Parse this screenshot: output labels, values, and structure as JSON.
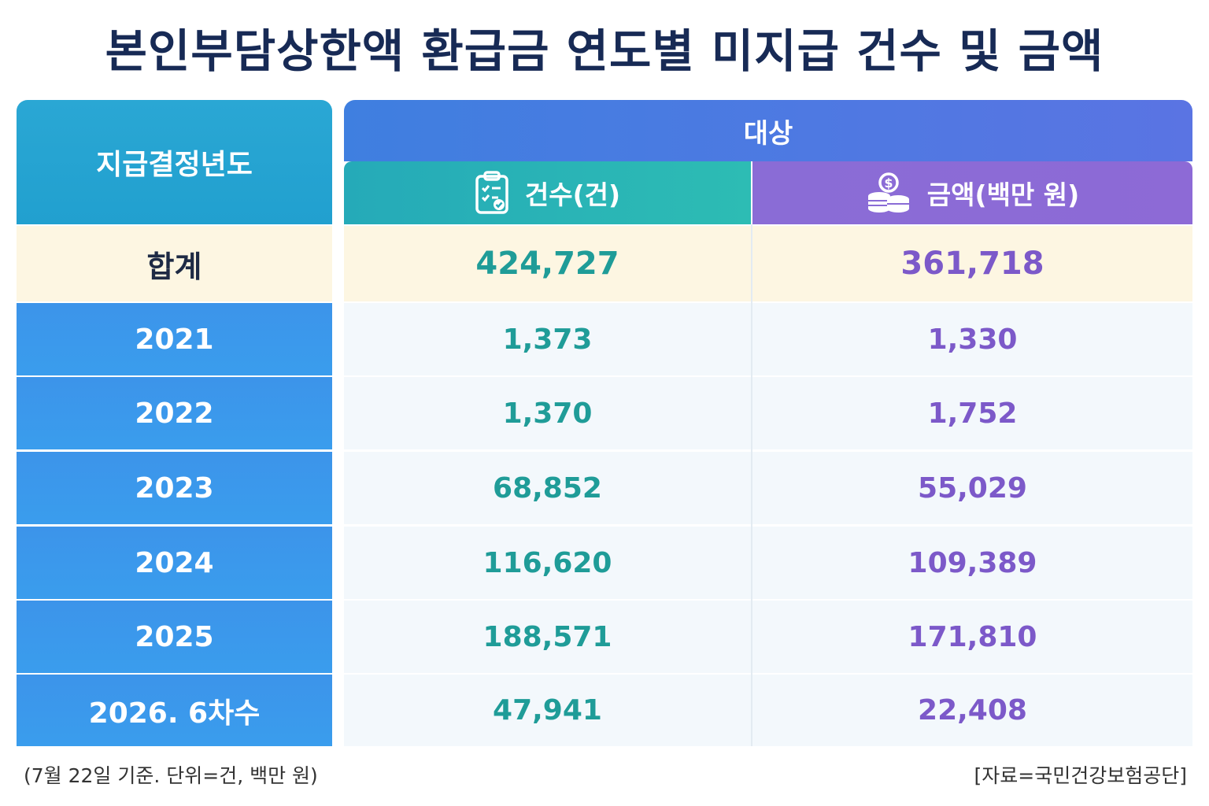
{
  "title": "본인부담상한액 환급금 연도별 미지급 건수 및 금액",
  "table": {
    "row_header": "지급결정년도",
    "group_header": "대상",
    "columns": {
      "count": {
        "label": "건수(건)",
        "icon": "clipboard-check-icon",
        "color": "#1f9c98"
      },
      "amount": {
        "label": "금액(백만 원)",
        "icon": "coin-stack-icon",
        "color": "#7c59c9"
      }
    },
    "rows": [
      {
        "label": "합계",
        "count": "424,727",
        "amount": "361,718"
      },
      {
        "label": "2021",
        "count": "1,373",
        "amount": "1,330"
      },
      {
        "label": "2022",
        "count": "1,370",
        "amount": "1,752"
      },
      {
        "label": "2023",
        "count": "68,852",
        "amount": "55,029"
      },
      {
        "label": "2024",
        "count": "116,620",
        "amount": "109,389"
      },
      {
        "label": "2025",
        "count": "188,571",
        "amount": "171,810"
      },
      {
        "label": "2026. 6차수",
        "count": "47,941",
        "amount": "22,408"
      }
    ]
  },
  "footnote": {
    "left": "(7월 22일 기준. 단위=건, 백만 원)",
    "right": "[자료=국민건강보험공단]"
  },
  "colors": {
    "title": "#172a55",
    "header_teal": "#2aa7d4",
    "header_blue": "#4a7ae2",
    "row_label_blue": "#3c98eb",
    "total_bg": "#fdf6e2"
  }
}
